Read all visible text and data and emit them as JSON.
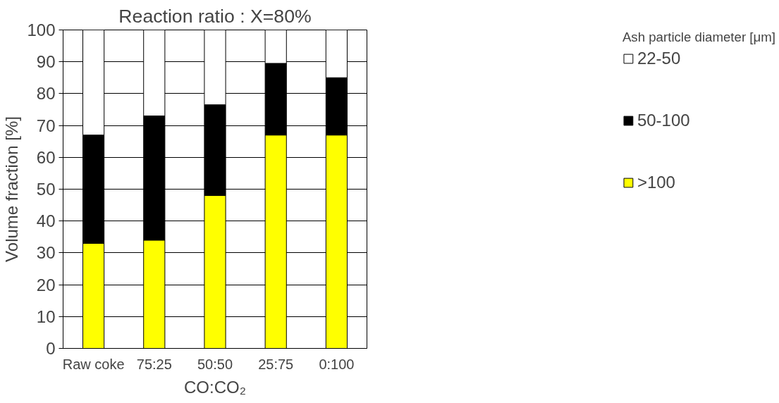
{
  "chart_data": {
    "type": "bar",
    "title": "Reaction ratio : X=80%",
    "xlabel": "CO:CO₂",
    "ylabel": "Volume fraction [%]",
    "legend_title": "Ash particle diameter [μm]",
    "categories": [
      "Raw coke",
      "75:25",
      "50:50",
      "25:75",
      "0:100"
    ],
    "stacked": true,
    "series": [
      {
        "name": ">100",
        "color": "#ffff00",
        "values": [
          33,
          34,
          48,
          67,
          67
        ]
      },
      {
        "name": "50-100",
        "color": "#000000",
        "values": [
          34,
          39,
          28.5,
          22.5,
          18
        ]
      },
      {
        "name": "22-50",
        "color": "#ffffff",
        "values": [
          33,
          27,
          23.5,
          10.5,
          15
        ]
      }
    ],
    "ylim": [
      0,
      100
    ],
    "yticks": [
      0,
      10,
      20,
      30,
      40,
      50,
      60,
      70,
      80,
      90,
      100
    ],
    "grid": "y",
    "legend": "right"
  }
}
